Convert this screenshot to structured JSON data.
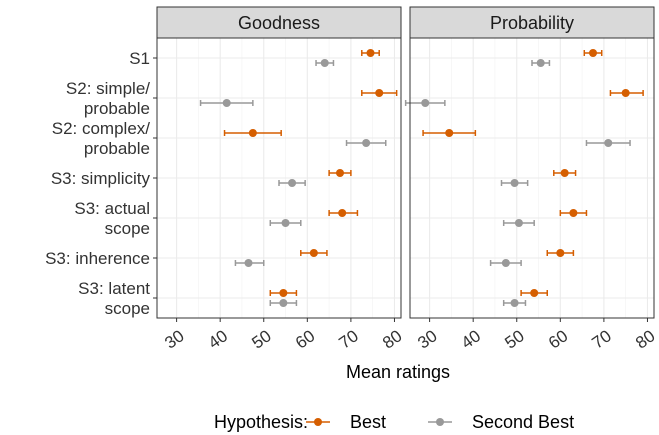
{
  "chart_data": {
    "type": "scatter",
    "facets": [
      "Goodness",
      "Probability"
    ],
    "categories": [
      [
        "S1"
      ],
      [
        "S2: simple/",
        "probable"
      ],
      [
        "S2: complex/",
        "probable"
      ],
      [
        "S3: simplicity"
      ],
      [
        "S3: actual",
        "scope"
      ],
      [
        "S3: inherence"
      ],
      [
        "S3: latent",
        "scope"
      ]
    ],
    "xlabel": "Mean ratings",
    "x_ticks": [
      30,
      40,
      50,
      60,
      70,
      80
    ],
    "xlim": [
      25.5,
      81.5
    ],
    "legend_title": "Hypothesis:",
    "legend_position": "bottom",
    "series": [
      {
        "name": "Best",
        "color": "#d55e00",
        "values": {
          "Goodness": [
            {
              "mean": 74.5,
              "lo": 72.5,
              "hi": 76.5
            },
            {
              "mean": 76.5,
              "lo": 72.5,
              "hi": 80.5
            },
            {
              "mean": 47.5,
              "lo": 41.0,
              "hi": 54.0
            },
            {
              "mean": 67.5,
              "lo": 65.0,
              "hi": 70.0
            },
            {
              "mean": 68.0,
              "lo": 65.0,
              "hi": 71.5
            },
            {
              "mean": 61.5,
              "lo": 58.5,
              "hi": 64.5
            },
            {
              "mean": 54.5,
              "lo": 51.5,
              "hi": 57.5
            }
          ],
          "Probability": [
            {
              "mean": 67.5,
              "lo": 65.5,
              "hi": 69.5
            },
            {
              "mean": 75.0,
              "lo": 71.5,
              "hi": 79.0
            },
            {
              "mean": 34.5,
              "lo": 28.5,
              "hi": 40.5
            },
            {
              "mean": 61.0,
              "lo": 58.5,
              "hi": 63.5
            },
            {
              "mean": 63.0,
              "lo": 60.0,
              "hi": 66.0
            },
            {
              "mean": 60.0,
              "lo": 57.0,
              "hi": 63.0
            },
            {
              "mean": 54.0,
              "lo": 51.0,
              "hi": 57.0
            }
          ]
        }
      },
      {
        "name": "Second Best",
        "color": "#999999",
        "values": {
          "Goodness": [
            {
              "mean": 64.0,
              "lo": 62.0,
              "hi": 66.0
            },
            {
              "mean": 41.5,
              "lo": 35.5,
              "hi": 47.5
            },
            {
              "mean": 73.5,
              "lo": 69.0,
              "hi": 78.0
            },
            {
              "mean": 56.5,
              "lo": 53.5,
              "hi": 59.5
            },
            {
              "mean": 55.0,
              "lo": 51.5,
              "hi": 58.5
            },
            {
              "mean": 46.5,
              "lo": 43.5,
              "hi": 50.0
            },
            {
              "mean": 54.5,
              "lo": 51.5,
              "hi": 57.5
            }
          ],
          "Probability": [
            {
              "mean": 55.5,
              "lo": 53.5,
              "hi": 57.5
            },
            {
              "mean": 29.0,
              "lo": 24.5,
              "hi": 33.5
            },
            {
              "mean": 71.0,
              "lo": 66.0,
              "hi": 76.0
            },
            {
              "mean": 49.5,
              "lo": 46.5,
              "hi": 52.5
            },
            {
              "mean": 50.5,
              "lo": 47.0,
              "hi": 54.0
            },
            {
              "mean": 47.5,
              "lo": 44.0,
              "hi": 51.0
            },
            {
              "mean": 49.5,
              "lo": 47.0,
              "hi": 52.0
            }
          ]
        }
      }
    ]
  }
}
